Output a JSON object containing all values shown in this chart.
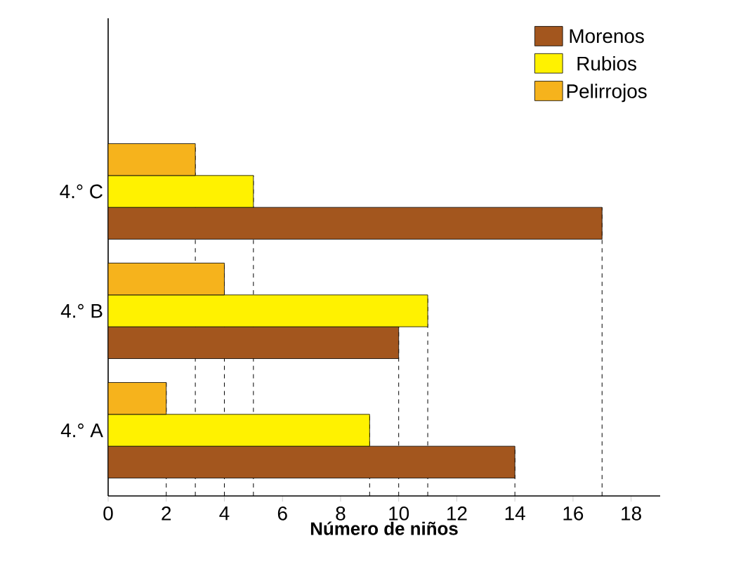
{
  "chart_data": {
    "type": "bar",
    "orientation": "horizontal",
    "xlabel": "Número de niños",
    "categories": [
      "4.° C",
      "4.° B",
      "4.° A"
    ],
    "series": [
      {
        "name": "Morenos",
        "color": "#a3561e",
        "values": [
          17,
          10,
          14
        ]
      },
      {
        "name": "Rubios",
        "color": "#fff200",
        "values": [
          5,
          11,
          9
        ]
      },
      {
        "name": "Pelirrojos",
        "color": "#f6b31c",
        "values": [
          3,
          4,
          2
        ]
      }
    ],
    "xlim": [
      0,
      19
    ],
    "xticks": [
      0,
      2,
      4,
      6,
      8,
      10,
      12,
      14,
      16,
      18
    ],
    "legend": "top right",
    "grid": false,
    "ref_lines": [
      {
        "axis": "x",
        "value": 2,
        "line_style": "dashed"
      },
      {
        "axis": "x",
        "value": 3,
        "line_style": "dashed"
      },
      {
        "axis": "x",
        "value": 4,
        "line_style": "dashed"
      },
      {
        "axis": "x",
        "value": 5,
        "line_style": "dashed"
      },
      {
        "axis": "x",
        "value": 9,
        "line_style": "dashed"
      },
      {
        "axis": "x",
        "value": 10,
        "line_style": "dashed"
      },
      {
        "axis": "x",
        "value": 11,
        "line_style": "dashed"
      },
      {
        "axis": "x",
        "value": 14,
        "line_style": "dashed"
      },
      {
        "axis": "x",
        "value": 17,
        "line_style": "dashed"
      }
    ]
  }
}
